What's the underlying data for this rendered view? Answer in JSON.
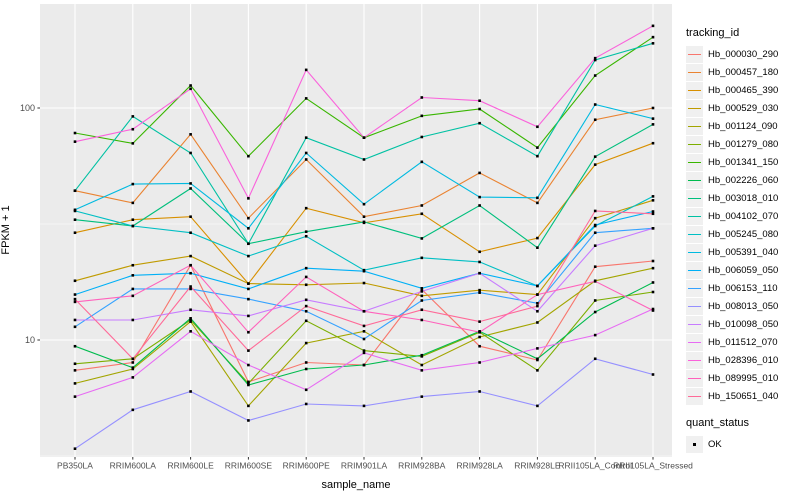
{
  "chart_data": {
    "type": "line",
    "xlabel": "sample_name",
    "ylabel": "FPKM + 1",
    "y_scale": "log10",
    "y_ticks": [
      10,
      100
    ],
    "y_tick_labels": [
      "10",
      "100"
    ],
    "y_minor_ticks": [
      3.162,
      31.623
    ],
    "ylim": [
      3.0,
      280
    ],
    "grid": true,
    "panel_bg": "#EBEBEB",
    "grid_color": "#FFFFFF",
    "tick_text_color": "#4D4D4D",
    "point_color": "#000000",
    "legend_position": "right",
    "categories": [
      "PB350LA",
      "RRIM600LA",
      "RRIM600LE",
      "RRIM600SE",
      "RRIM600PE",
      "RRIM901LA",
      "RRIM928BA",
      "RRIM928LA",
      "RRIM928LE",
      "RRII105LA_Control",
      "RRII105LA_Stressed"
    ],
    "legend_title": "tracking_id",
    "series": [
      {
        "name": "Hb_000030_290",
        "color": "#F8766D",
        "values": [
          7.4,
          8.0,
          21.0,
          6.6,
          8.0,
          7.8,
          16.5,
          9.4,
          8.2,
          20.7,
          21.9
        ]
      },
      {
        "name": "Hb_000457_180",
        "color": "#EA8331",
        "values": [
          44,
          39,
          77,
          33.5,
          60,
          34,
          38,
          52.5,
          39,
          89,
          100
        ]
      },
      {
        "name": "Hb_000465_390",
        "color": "#D89000",
        "values": [
          29,
          33,
          34,
          17.5,
          37,
          32,
          35,
          24,
          27.5,
          57,
          70.5
        ]
      },
      {
        "name": "Hb_000529_030",
        "color": "#C09B00",
        "values": [
          18,
          21,
          23,
          17.5,
          17.3,
          17.6,
          15.5,
          16.4,
          15.7,
          33.5,
          40
        ]
      },
      {
        "name": "Hb_001124_090",
        "color": "#A3A500",
        "values": [
          6.5,
          7.5,
          12,
          5.2,
          9.7,
          10.9,
          7.8,
          10.3,
          11.9,
          18,
          20.4
        ]
      },
      {
        "name": "Hb_001279_080",
        "color": "#7CAE00",
        "values": [
          7.9,
          8.3,
          12.2,
          6.5,
          12.1,
          9.0,
          8.5,
          10.8,
          7.4,
          14.8,
          16.1
        ]
      },
      {
        "name": "Hb_001341_150",
        "color": "#39B600",
        "values": [
          78,
          70.4,
          125,
          62,
          110,
          74.5,
          92.5,
          99,
          67.5,
          138,
          202
        ]
      },
      {
        "name": "Hb_002226_060",
        "color": "#00BB4E",
        "values": [
          9.4,
          7.6,
          12.4,
          6.4,
          7.5,
          7.8,
          8.6,
          10.9,
          8.3,
          13.2,
          17.7
        ]
      },
      {
        "name": "Hb_003018_010",
        "color": "#00BF7D",
        "values": [
          33,
          31,
          45,
          26,
          29.3,
          32.3,
          27.4,
          38,
          25,
          61.7,
          85
        ]
      },
      {
        "name": "Hb_004102_070",
        "color": "#00C1A3",
        "values": [
          44,
          92,
          64,
          26,
          74.5,
          60,
          75,
          86,
          62,
          161,
          190
        ]
      },
      {
        "name": "Hb_005245_080",
        "color": "#00BFC4",
        "values": [
          36,
          31,
          29,
          23,
          28,
          20,
          22.6,
          21.7,
          17.1,
          31,
          41.6
        ]
      },
      {
        "name": "Hb_005391_040",
        "color": "#00BAE0",
        "values": [
          36.4,
          47,
          47.3,
          30.3,
          64,
          38.5,
          58.6,
          41.3,
          41,
          103.5,
          90
        ]
      },
      {
        "name": "Hb_006059_050",
        "color": "#00B0F6",
        "values": [
          15.7,
          19,
          19.4,
          16.6,
          20.4,
          19.8,
          16.7,
          19.4,
          17.1,
          31.3,
          35.8
        ]
      },
      {
        "name": "Hb_006153_110",
        "color": "#35A2FF",
        "values": [
          11.4,
          16.6,
          16.6,
          15,
          13.3,
          10.1,
          14.8,
          16,
          14.4,
          29,
          30.3
        ]
      },
      {
        "name": "Hb_008013_050",
        "color": "#9590FF",
        "values": [
          3.4,
          5.0,
          6.0,
          4.5,
          5.3,
          5.2,
          5.7,
          6.0,
          5.2,
          8.3,
          7.1
        ]
      },
      {
        "name": "Hb_010098_050",
        "color": "#C77CFF",
        "values": [
          12.2,
          12.2,
          13.5,
          12.7,
          14.9,
          13.3,
          16.2,
          19.4,
          13.3,
          25.5,
          30.3
        ]
      },
      {
        "name": "Hb_011512_070",
        "color": "#E76BF3",
        "values": [
          5.7,
          6.9,
          10.9,
          7.8,
          6.1,
          8.8,
          7.4,
          8.0,
          9.2,
          10.5,
          13.6
        ]
      },
      {
        "name": "Hb_028396_010",
        "color": "#FA62DB",
        "values": [
          71.6,
          81,
          121,
          40.8,
          146,
          74.5,
          111,
          107.5,
          83,
          164,
          226
        ]
      },
      {
        "name": "Hb_089995_010",
        "color": "#FF62BC",
        "values": [
          14.6,
          15.5,
          21,
          10.8,
          18.7,
          13.3,
          12.2,
          10.8,
          15.7,
          17.9,
          13.4
        ]
      },
      {
        "name": "Hb_150651_040",
        "color": "#FF6A98",
        "values": [
          15,
          8.3,
          17,
          9.0,
          14,
          11.5,
          13.5,
          12,
          14,
          36,
          35
        ]
      }
    ],
    "legend2_title": "quant_status",
    "legend2_items": [
      {
        "label": "OK"
      }
    ]
  }
}
